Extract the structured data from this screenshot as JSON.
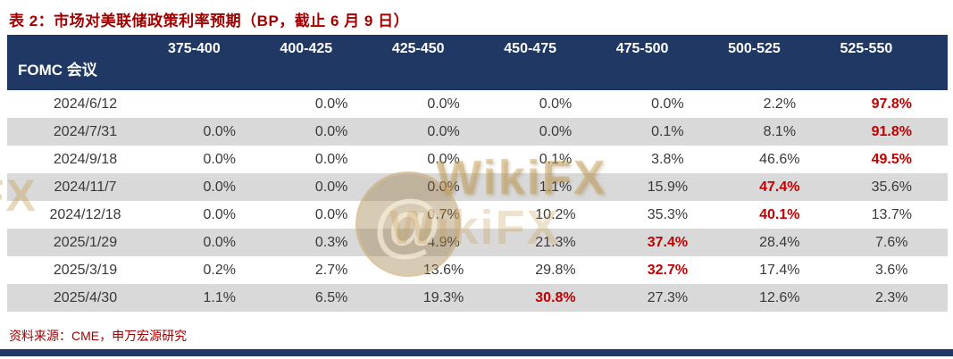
{
  "title": "表 2：市场对美联储政策利率预期（BP，截止 6 月 9 日）",
  "table": {
    "corner_header": "FOMC 会议",
    "columns": [
      "375-400",
      "400-425",
      "425-450",
      "450-475",
      "475-500",
      "500-525",
      "525-550"
    ],
    "rows": [
      {
        "date": "2024/6/12",
        "values": [
          "",
          "0.0%",
          "0.0%",
          "0.0%",
          "0.0%",
          "2.2%",
          "97.8%"
        ],
        "highlight": 6
      },
      {
        "date": "2024/7/31",
        "values": [
          "0.0%",
          "0.0%",
          "0.0%",
          "0.0%",
          "0.1%",
          "8.1%",
          "91.8%"
        ],
        "highlight": 6
      },
      {
        "date": "2024/9/18",
        "values": [
          "0.0%",
          "0.0%",
          "0.0%",
          "0.1%",
          "3.8%",
          "46.6%",
          "49.5%"
        ],
        "highlight": 6
      },
      {
        "date": "2024/11/7",
        "values": [
          "0.0%",
          "0.0%",
          "0.0%",
          "1.1%",
          "15.9%",
          "47.4%",
          "35.6%"
        ],
        "highlight": 5
      },
      {
        "date": "2024/12/18",
        "values": [
          "0.0%",
          "0.0%",
          "0.7%",
          "10.2%",
          "35.3%",
          "40.1%",
          "13.7%"
        ],
        "highlight": 5
      },
      {
        "date": "2025/1/29",
        "values": [
          "0.0%",
          "0.3%",
          "4.9%",
          "21.3%",
          "37.4%",
          "28.4%",
          "7.6%"
        ],
        "highlight": 4
      },
      {
        "date": "2025/3/19",
        "values": [
          "0.2%",
          "2.7%",
          "13.6%",
          "29.8%",
          "32.7%",
          "17.4%",
          "3.6%"
        ],
        "highlight": 4
      },
      {
        "date": "2025/4/30",
        "values": [
          "1.1%",
          "6.5%",
          "19.3%",
          "30.8%",
          "27.3%",
          "12.6%",
          "2.3%"
        ],
        "highlight": 3
      }
    ]
  },
  "footer": {
    "source": "资料来源：CME，申万宏源研究"
  },
  "watermark": {
    "brand": "WikiFX",
    "partial": "FX",
    "badge_glyph": "@"
  },
  "colors": {
    "navy": "#1F3864",
    "title_red": "#A00000",
    "highlight_red": "#C00000",
    "row_alt": "#D9D9D9",
    "body_text": "#3B3838",
    "wm_gold": "#C9A45C"
  }
}
